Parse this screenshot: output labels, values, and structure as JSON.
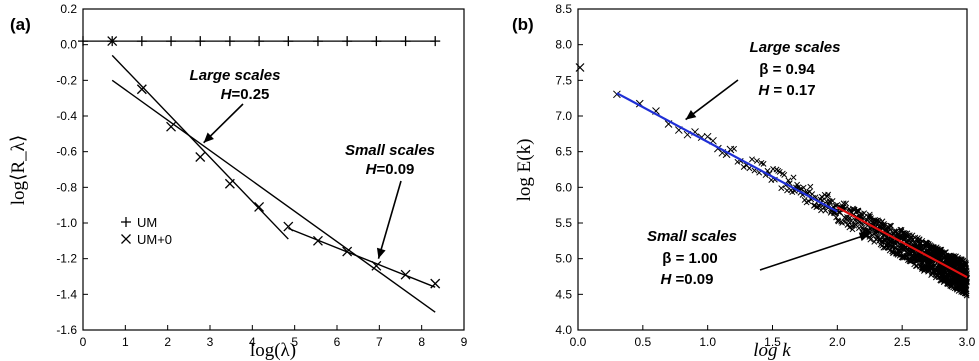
{
  "chart_data": [
    {
      "type": "scatter",
      "panel_label": "(a)",
      "xlabel": "log(λ)",
      "ylabel": "log⟨R_λ⟩",
      "xlim": [
        0,
        9
      ],
      "ylim": [
        -1.6,
        0.2
      ],
      "xticks": [
        "0",
        "1",
        "2",
        "3",
        "4",
        "5",
        "6",
        "7",
        "8",
        "9"
      ],
      "yticks": [
        "0.2",
        "0.0",
        "-0.2",
        "-0.4",
        "-0.6",
        "-0.8",
        "-1.0",
        "-1.2",
        "-1.4",
        "-1.6"
      ],
      "legend": {
        "placement": "lower-left",
        "entries": [
          "UM",
          "UM+0"
        ]
      },
      "series": [
        {
          "name": "UM",
          "marker": "plus",
          "connected": true,
          "x": [
            0,
            0.69,
            1.39,
            2.08,
            2.77,
            3.47,
            4.16,
            4.85,
            5.55,
            6.24,
            6.93,
            7.62,
            8.32
          ],
          "y": [
            0.02,
            0.02,
            0.02,
            0.02,
            0.02,
            0.02,
            0.02,
            0.02,
            0.02,
            0.02,
            0.02,
            0.02,
            0.02
          ]
        },
        {
          "name": "UM+0",
          "marker": "cross",
          "connected": false,
          "x": [
            0.69,
            1.39,
            2.08,
            2.77,
            3.47,
            4.16,
            4.85,
            5.55,
            6.24,
            6.93,
            7.62,
            8.32
          ],
          "y": [
            0.02,
            -0.25,
            -0.46,
            -0.63,
            -0.78,
            -0.91,
            -1.02,
            -1.1,
            -1.16,
            -1.24,
            -1.29,
            -1.34
          ]
        }
      ],
      "fit_lines": [
        {
          "x": [
            0.69,
            4.85
          ],
          "y": [
            -0.06,
            -1.09
          ]
        },
        {
          "x": [
            0.69,
            8.32
          ],
          "y": [
            -0.2,
            -1.5
          ]
        },
        {
          "x": [
            4.85,
            8.32
          ],
          "y": [
            -1.03,
            -1.36
          ]
        }
      ],
      "annotations": [
        {
          "label": "Large scales",
          "value_prefix": "H",
          "value": "=0.25",
          "arrow_to": [
            2.85,
            -0.55
          ]
        },
        {
          "label": "Small scales",
          "value_prefix": "H",
          "value": "=0.09",
          "arrow_to": [
            6.98,
            -1.2
          ]
        }
      ]
    },
    {
      "type": "scatter",
      "panel_label": "(b)",
      "xlabel": "log k",
      "ylabel": "log E(k)",
      "xlim": [
        0.0,
        3.0
      ],
      "ylim": [
        4.0,
        8.5
      ],
      "xticks": [
        "0.0",
        "0.5",
        "1.0",
        "1.5",
        "2.0",
        "2.5",
        "3.0"
      ],
      "yticks": [
        "8.5",
        "8.0",
        "7.5",
        "7.0",
        "6.5",
        "6.0",
        "5.5",
        "5.0",
        "4.5",
        "4.0"
      ],
      "spectrum": {
        "marker": "cross",
        "x_start": 0.3,
        "x_end": 3.0,
        "y_start": 7.32,
        "y_end": 4.72,
        "outlier": [
          0.0,
          7.68
        ]
      },
      "fit_lines": [
        {
          "name": "large-scale fit",
          "color": "#1f2fd6",
          "x": [
            0.3,
            2.0
          ],
          "y": [
            7.32,
            5.66
          ]
        },
        {
          "name": "small-scale fit",
          "color": "#e01010",
          "x": [
            2.0,
            3.0
          ],
          "y": [
            5.72,
            4.74
          ]
        }
      ],
      "annotations": [
        {
          "label": "Large scales",
          "beta": "β = 0.94",
          "H_prefix": "H",
          "H_value": " = 0.17",
          "arrow_to": [
            0.83,
            6.95
          ]
        },
        {
          "label": "Small scales",
          "beta": "β = 1.00",
          "H_prefix": "H",
          "H_value": " =0.09",
          "arrow_to": [
            2.25,
            5.35
          ]
        }
      ]
    }
  ]
}
